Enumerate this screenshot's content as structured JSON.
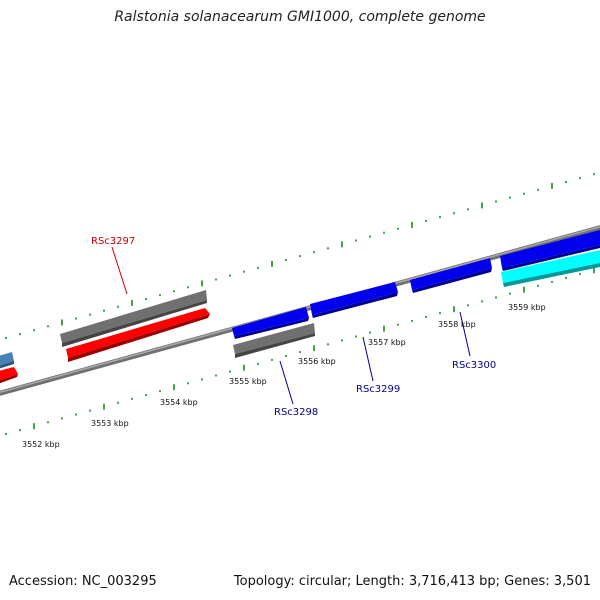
{
  "header": {
    "title": "Ralstonia solanacearum GMI1000, complete genome"
  },
  "footer": {
    "accession": "Accession: NC_003295",
    "topology": "Topology: circular; Length: 3,716,413 bp; Genes: 3,501"
  },
  "colors": {
    "backbone": "#808080",
    "tick": "#1a8a1a",
    "gene_red": "#ff0000",
    "gene_gray": "#707070",
    "gene_blue": "#0000ee",
    "gene_cyan": "#00ffff",
    "gene_steel": "#4682b4",
    "label_red": "#cc0000",
    "label_blue": "#00008b"
  },
  "kbp_labels": [
    {
      "kbp": 3552,
      "text": "3552 kbp"
    },
    {
      "kbp": 3553,
      "text": "3553 kbp"
    },
    {
      "kbp": 3554,
      "text": "3554 kbp"
    },
    {
      "kbp": 3555,
      "text": "3555 kbp"
    },
    {
      "kbp": 3556,
      "text": "3556 kbp"
    },
    {
      "kbp": 3557,
      "text": "3557 kbp"
    },
    {
      "kbp": 3558,
      "text": "3558 kbp"
    },
    {
      "kbp": 3559,
      "text": "3559 kbp"
    }
  ],
  "gene_labels": [
    {
      "id": "RSc3297",
      "text": "RSc3297",
      "color": "#cc0000"
    },
    {
      "id": "RSc3298",
      "text": "RSc3298",
      "color": "#00008b"
    },
    {
      "id": "RSc3299",
      "text": "RSc3299",
      "color": "#00008b"
    },
    {
      "id": "RSc3300",
      "text": "RSc3300",
      "color": "#00008b"
    }
  ]
}
